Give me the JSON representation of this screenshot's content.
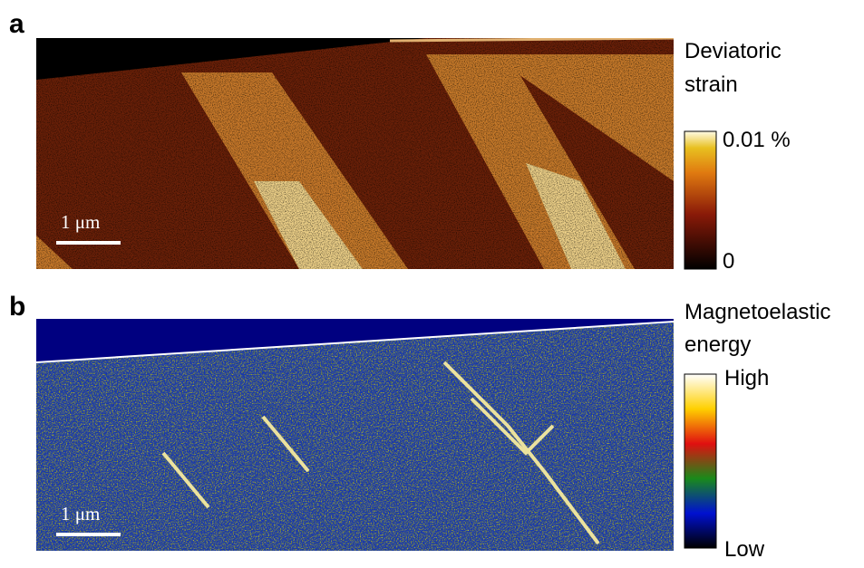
{
  "panels": [
    {
      "label": "a",
      "title": [
        "Deviatoric",
        "strain"
      ],
      "colorbar": {
        "max": "0.01 %",
        "min": "0"
      },
      "scale_bar": "1 μm"
    },
    {
      "label": "b",
      "title": [
        "Magnetoelastic",
        "energy"
      ],
      "colorbar": {
        "max": "High",
        "min": "Low"
      },
      "scale_bar": "1 μm"
    }
  ]
}
